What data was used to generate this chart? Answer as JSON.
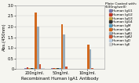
{
  "x_labels": [
    "200ng/ml.",
    "50ng/ml.",
    "10ng/ml."
  ],
  "xlabel": "Recombinant Human IgA1 Antibody",
  "ylabel": "Abs.(450nm)",
  "ylim": [
    0,
    3.0
  ],
  "yticks": [
    0,
    0.5,
    1.0,
    1.5,
    2.0,
    2.5,
    3.0
  ],
  "legend_title": "Plate Coated with:\n(500ng/well)",
  "series": [
    {
      "label": "Human IgG1",
      "color": "#7b7baa",
      "values": [
        0.06,
        0.04,
        0.02
      ]
    },
    {
      "label": "Human IgG2",
      "color": "#c0392b",
      "values": [
        0.08,
        0.04,
        0.02
      ]
    },
    {
      "label": "Human IgG3",
      "color": "#c8a040",
      "values": [
        0.06,
        0.04,
        0.02
      ]
    },
    {
      "label": "Human IgG4",
      "color": "#333333",
      "values": [
        0.06,
        0.04,
        0.02
      ]
    },
    {
      "label": "Human IgM",
      "color": "#5599bb",
      "values": [
        0.06,
        0.04,
        0.02
      ]
    },
    {
      "label": "Human IgA",
      "color": "#d2691e",
      "values": [
        2.65,
        2.1,
        1.15
      ]
    },
    {
      "label": "Human IgA1",
      "color": "#9aabb8",
      "values": [
        2.0,
        1.62,
        0.92
      ]
    },
    {
      "label": "Human IgA2",
      "color": "#cc5533",
      "values": [
        0.22,
        0.13,
        0.05
      ]
    },
    {
      "label": "Human IgD",
      "color": "#bbccdd",
      "values": [
        0.04,
        0.03,
        0.02
      ]
    },
    {
      "label": "Human IgE",
      "color": "#cccccc",
      "values": [
        0.04,
        0.03,
        0.02
      ]
    }
  ],
  "background_color": "#f5f5f0",
  "plot_bg_color": "#f5f5f0",
  "axis_fontsize": 4.0,
  "tick_fontsize": 3.5,
  "legend_fontsize": 3.0,
  "legend_title_fontsize": 3.2,
  "bar_width": 0.055,
  "group_positions": [
    0.3,
    1.0,
    1.7
  ]
}
